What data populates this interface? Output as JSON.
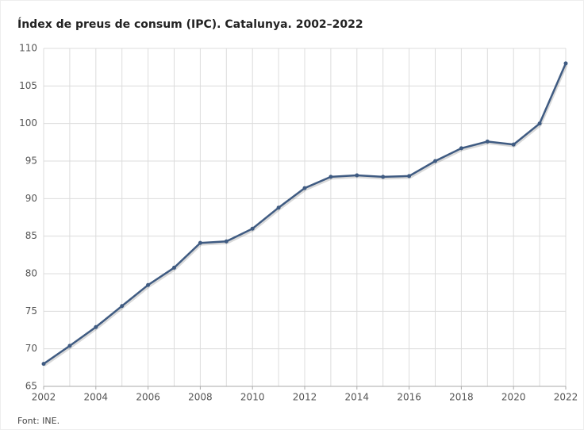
{
  "chart_data": {
    "type": "line",
    "title": "Índex de preus de consum (IPC). Catalunya. 2002–2022",
    "source": "Font: INE.",
    "x": [
      2002,
      2003,
      2004,
      2005,
      2006,
      2007,
      2008,
      2009,
      2010,
      2011,
      2012,
      2013,
      2014,
      2015,
      2016,
      2017,
      2018,
      2019,
      2020,
      2021,
      2022
    ],
    "series": [
      {
        "name": "IPC",
        "color": "#3f5b82",
        "values": [
          68.0,
          70.4,
          72.9,
          75.7,
          78.5,
          80.8,
          84.1,
          84.3,
          86.0,
          88.8,
          91.4,
          92.9,
          93.1,
          92.9,
          93.0,
          95.0,
          96.7,
          97.6,
          97.2,
          100.0,
          108.0
        ]
      }
    ],
    "xlim": [
      2002,
      2022
    ],
    "xticks": [
      2002,
      2004,
      2006,
      2008,
      2010,
      2012,
      2014,
      2016,
      2018,
      2020,
      2022
    ],
    "ylim": [
      65,
      110
    ],
    "yticks": [
      65,
      70,
      75,
      80,
      85,
      90,
      95,
      100,
      105,
      110
    ],
    "grid": true,
    "legend": false
  }
}
